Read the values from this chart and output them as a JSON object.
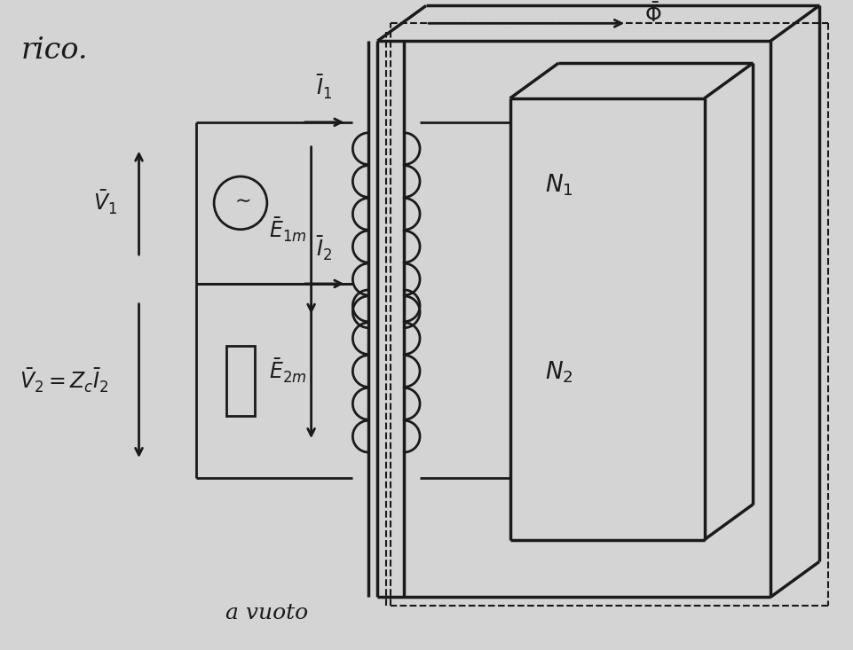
{
  "bg_color": "#d4d4d4",
  "line_color": "#1a1a1a",
  "lw": 2.0,
  "lw_thick": 2.5,
  "text_color": "#1a1a1a",
  "title_left": "rico.",
  "label_V1": "$\\bar{V}_1$",
  "label_V2": "$\\bar{V}_2 = Z_c\\bar{I}_2$",
  "label_I1": "$\\bar{I}_1$",
  "label_I2": "$\\bar{I}_2$",
  "label_E1m": "$\\bar{E}_{1m}$",
  "label_E2m": "$\\bar{E}_{2m}$",
  "label_N1": "$N_1$",
  "label_N2": "$N_2$",
  "label_Phi": "$\\bar{\\Phi}$",
  "bottom_text": "a vuoto",
  "figw": 9.61,
  "figh": 7.33,
  "dpi": 100
}
